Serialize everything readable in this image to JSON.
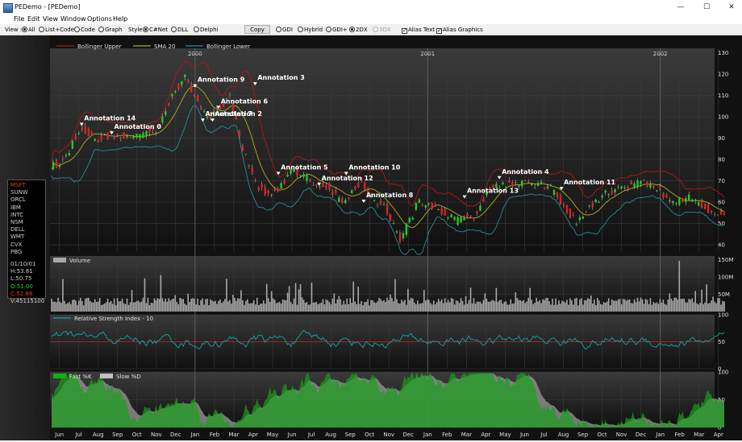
{
  "window": {
    "title": "PEDemo - [PEDemo]",
    "minimize": "—",
    "maximize": "☐",
    "close": "✕"
  },
  "menu": [
    "File",
    "Edit",
    "View",
    "Window",
    "Options",
    "Help"
  ],
  "toolbar": {
    "view_label": "View :",
    "view_options": [
      {
        "label": "All",
        "selected": true
      },
      {
        "label": "List+Code",
        "selected": false
      },
      {
        "label": "Code",
        "selected": false
      },
      {
        "label": "Graph",
        "selected": false
      }
    ],
    "style_label": "Style",
    "style_options": [
      {
        "label": "C#Net",
        "selected": true
      },
      {
        "label": "DLL",
        "selected": false
      },
      {
        "label": "Delphi",
        "selected": false
      }
    ],
    "copy_label": "Copy",
    "render_options": [
      {
        "label": "GDI",
        "selected": false,
        "disabled": false
      },
      {
        "label": "Hybrid",
        "selected": false,
        "disabled": false
      },
      {
        "label": "GDI+",
        "selected": false,
        "disabled": false
      },
      {
        "label": "2DX",
        "selected": true,
        "disabled": false
      },
      {
        "label": "3DX",
        "selected": false,
        "disabled": true
      }
    ],
    "alias_text": {
      "label": "Alias Text",
      "checked": true
    },
    "alias_graphics": {
      "label": "Alias Graphics",
      "checked": true
    }
  },
  "symbols": {
    "items": [
      {
        "label": "MSFT",
        "color": "#ff3030"
      },
      {
        "label": "SUNW",
        "color": "#d0d0d0"
      },
      {
        "label": "ORCL",
        "color": "#d0d0d0"
      },
      {
        "label": "IBM",
        "color": "#d0d0d0"
      },
      {
        "label": "INTC",
        "color": "#d0d0d0"
      },
      {
        "label": "NSM",
        "color": "#d0d0d0"
      },
      {
        "label": "DELL",
        "color": "#d0d0d0"
      },
      {
        "label": "WMT",
        "color": "#d0d0d0"
      },
      {
        "label": "CVX",
        "color": "#d0d0d0"
      },
      {
        "label": "PBG",
        "color": "#d0d0d0"
      }
    ],
    "readout": [
      {
        "label": "01/10/01",
        "color": "#d0d0d0"
      },
      {
        "label": "H:53.81",
        "color": "#d0d0d0"
      },
      {
        "label": "L:50.75",
        "color": "#d0d0d0"
      },
      {
        "label": "O:51.00",
        "color": "#22dd22"
      },
      {
        "label": "C:52.88",
        "color": "#ff3030"
      },
      {
        "label": "V:45115100",
        "color": "#d0d0d0"
      }
    ]
  },
  "chart_data": {
    "type": "line",
    "panels": [
      {
        "name": "price",
        "legend": [
          {
            "name": "Bollinger Upper",
            "color": "#b01818"
          },
          {
            "name": "SMA 20",
            "color": "#b0b020"
          },
          {
            "name": "Bollinger Lower",
            "color": "#2a8a9a"
          }
        ],
        "yticks": [
          40,
          50,
          60,
          70,
          80,
          90,
          100,
          110,
          120,
          130
        ],
        "ylim": [
          37,
          132
        ],
        "year_labels": [
          {
            "label": "2000",
            "month": 7
          },
          {
            "label": "2001",
            "month": 19
          },
          {
            "label": "2002",
            "month": 31
          }
        ],
        "keypoints": [
          [
            0,
            77
          ],
          [
            0.7,
            80
          ],
          [
            1.5,
            96
          ],
          [
            2.2,
            89
          ],
          [
            2.7,
            90
          ],
          [
            3,
            92
          ],
          [
            4,
            90
          ],
          [
            5.4,
            94
          ],
          [
            6.3,
            112
          ],
          [
            6.9,
            118
          ],
          [
            7.3,
            111
          ],
          [
            8,
            100
          ],
          [
            9.2,
            109
          ],
          [
            9.8,
            87
          ],
          [
            10.5,
            69
          ],
          [
            11.1,
            64
          ],
          [
            11.7,
            65
          ],
          [
            12.3,
            74
          ],
          [
            12.6,
            75
          ],
          [
            13.3,
            70
          ],
          [
            14.3,
            67
          ],
          [
            15,
            59
          ],
          [
            15.9,
            70
          ],
          [
            16.6,
            60
          ],
          [
            17.2,
            58
          ],
          [
            18,
            42
          ],
          [
            18.9,
            60
          ],
          [
            19.8,
            58
          ],
          [
            20.9,
            51
          ],
          [
            21.8,
            54
          ],
          [
            22.5,
            66
          ],
          [
            23.5,
            69
          ],
          [
            24.9,
            69
          ],
          [
            25.9,
            65
          ],
          [
            27.1,
            50
          ],
          [
            28,
            60
          ],
          [
            29,
            66
          ],
          [
            30.3,
            69
          ],
          [
            31,
            68
          ],
          [
            32,
            60
          ],
          [
            33,
            62
          ],
          [
            34,
            56
          ],
          [
            34.7,
            53
          ]
        ],
        "annotations": [
          {
            "label": "Annotation 14",
            "month": 1.55,
            "price": 96
          },
          {
            "label": "Annotation 0",
            "month": 3.1,
            "price": 92
          },
          {
            "label": "Annotation 9",
            "month": 7.4,
            "price": 114
          },
          {
            "label": "Annotation 3",
            "month": 10.5,
            "price": 115
          },
          {
            "label": "Annotation 6",
            "month": 8.6,
            "price": 104
          },
          {
            "label": "Annotation 7",
            "month": 7.8,
            "price": 98
          },
          {
            "label": "Annotation 2",
            "month": 8.3,
            "price": 98
          },
          {
            "label": "Annotation 5",
            "month": 11.7,
            "price": 73
          },
          {
            "label": "Annotation 12",
            "month": 13.8,
            "price": 68
          },
          {
            "label": "Annotation 10",
            "month": 15.2,
            "price": 73
          },
          {
            "label": "Annotation 8",
            "month": 16.1,
            "price": 60
          },
          {
            "label": "Annotation 13",
            "month": 21.3,
            "price": 62
          },
          {
            "label": "Annotation 4",
            "month": 23.1,
            "price": 71
          },
          {
            "label": "Annotation 11",
            "month": 26.3,
            "price": 66
          }
        ]
      },
      {
        "name": "volume",
        "legend": [
          {
            "name": "Volume",
            "color": "#a0a0a0"
          }
        ],
        "yticks": [
          "150M",
          "100M",
          "50M"
        ],
        "ytick_values": [
          150,
          100,
          50
        ],
        "ylim": [
          0,
          160
        ]
      },
      {
        "name": "rsi",
        "legend": [
          {
            "name": "Relative Strength Index - 10",
            "color": "#10a8a8"
          }
        ],
        "yticks": [
          100,
          50,
          0
        ],
        "ylim": [
          0,
          100
        ],
        "reference_line": 50
      },
      {
        "name": "stochastic",
        "legend": [
          {
            "name": "Fast %K",
            "color": "#10b010"
          },
          {
            "name": "Slow %D",
            "color": "#c0c0c0"
          }
        ],
        "yticks": [
          100,
          50,
          0
        ],
        "ylim": [
          0,
          100
        ]
      }
    ],
    "xticks": [
      "Jun",
      "Jul",
      "Aug",
      "Sep",
      "Oct",
      "Nov",
      "Dec",
      "Jan",
      "Feb",
      "Mar",
      "Apr",
      "May",
      "Jun",
      "Jul",
      "Aug",
      "Sep",
      "Oct",
      "Nov",
      "Dec",
      "Jan",
      "Feb",
      "Mar",
      "Apr",
      "May",
      "Jun",
      "Jul",
      "Aug",
      "Sep",
      "Oct",
      "Nov",
      "Dec",
      "Jan",
      "Feb",
      "Mar",
      "Apr"
    ],
    "grid": true
  }
}
